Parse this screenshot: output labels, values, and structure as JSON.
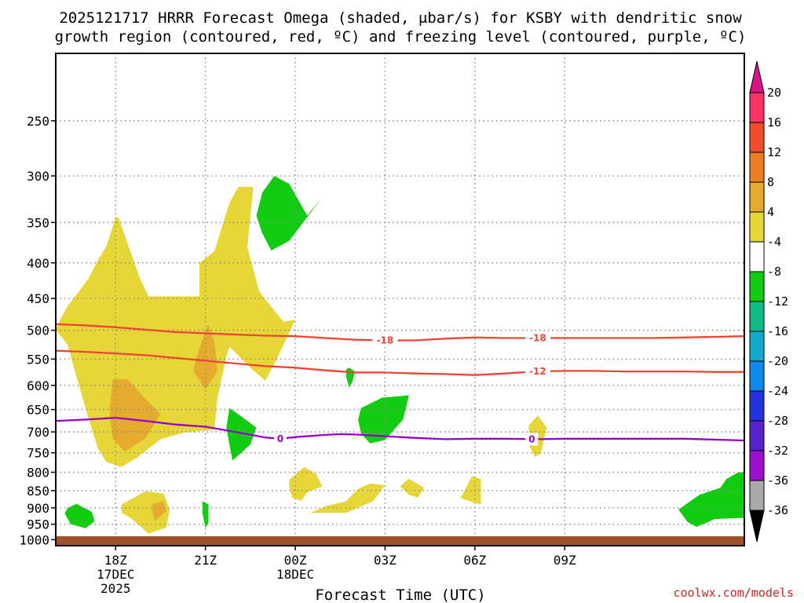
{
  "title": {
    "line1": "2025121717 HRRR Forecast Omega (shaded, μbar/s) for KSBY with dendritic snow",
    "line2": "growth region (contoured, red, ºC) and freezing level (contoured, purple, ºC)"
  },
  "xlabel": "Forecast Time (UTC)",
  "credit": "coolwx.com/models",
  "colors": {
    "grid": "#888888",
    "dgz_contour": "#ee4433",
    "freezing_contour": "#9900cc",
    "ground": "#a0522d",
    "credit": "#cc2222"
  },
  "chart_data": {
    "type": "heatmap",
    "y_axis": {
      "label": "",
      "reversed": true,
      "scale": "log-pressure",
      "range": [
        1020,
        200
      ],
      "ticks": [
        250,
        300,
        350,
        400,
        450,
        500,
        550,
        600,
        650,
        700,
        750,
        800,
        850,
        900,
        950,
        1000
      ]
    },
    "x_axis": {
      "range_hours": [
        -1,
        22
      ],
      "ticks": [
        {
          "label": "18Z",
          "sub1": "17DEC",
          "sub2": "2025",
          "hour": 1
        },
        {
          "label": "21Z",
          "sub1": "",
          "sub2": "",
          "hour": 4
        },
        {
          "label": "00Z",
          "sub1": "18DEC",
          "sub2": "",
          "hour": 7
        },
        {
          "label": "03Z",
          "sub1": "",
          "sub2": "",
          "hour": 10
        },
        {
          "label": "06Z",
          "sub1": "",
          "sub2": "",
          "hour": 13
        },
        {
          "label": "09Z",
          "sub1": "",
          "sub2": "",
          "hour": 16
        }
      ]
    },
    "grid": true,
    "colorbar": {
      "units": "μbar/s",
      "levels": [
        {
          "label": "20",
          "color": "#ff3366"
        },
        {
          "label": "16",
          "color": "#f24a2a"
        },
        {
          "label": "12",
          "color": "#ec7d24"
        },
        {
          "label": "8",
          "color": "#e4ab2e"
        },
        {
          "label": "4",
          "color": "#e6d637"
        },
        {
          "label": "-4",
          "color": "#ffffff"
        },
        {
          "label": "-8",
          "color": "#11cc11"
        },
        {
          "label": "-12",
          "color": "#11bb88"
        },
        {
          "label": "-16",
          "color": "#11aacc"
        },
        {
          "label": "-20",
          "color": "#1188ee"
        },
        {
          "label": "-24",
          "color": "#2233dd"
        },
        {
          "label": "-28",
          "color": "#5522cc"
        },
        {
          "label": "-32",
          "color": "#9911cc"
        },
        {
          "label": "-36",
          "color": "#aaaaaa"
        }
      ],
      "top_arrow_color": "#dd1188",
      "bottom_arrow_color": "#000000"
    },
    "omega_regions": [
      {
        "level": "4",
        "points": [
          [
            -1,
            499
          ],
          [
            -0.8,
            478
          ],
          [
            -0.6,
            461
          ],
          [
            -0.3,
            444
          ],
          [
            0.1,
            421
          ],
          [
            0.4,
            397
          ],
          [
            0.7,
            378
          ],
          [
            0.9,
            355
          ],
          [
            1.0,
            343
          ],
          [
            1.1,
            345
          ],
          [
            1.4,
            375
          ],
          [
            1.8,
            420
          ],
          [
            2.1,
            447
          ],
          [
            3.1,
            447
          ],
          [
            3.8,
            447
          ],
          [
            3.8,
            400
          ],
          [
            4.3,
            385
          ],
          [
            4.8,
            328
          ],
          [
            5.1,
            311
          ],
          [
            5.6,
            311
          ],
          [
            5.4,
            380
          ],
          [
            5.8,
            440
          ],
          [
            6.6,
            486
          ],
          [
            7.0,
            483
          ],
          [
            6.4,
            548
          ],
          [
            6.0,
            591
          ],
          [
            5.5,
            566
          ],
          [
            4.8,
            528
          ],
          [
            4.7,
            545
          ],
          [
            4.4,
            626
          ],
          [
            4.3,
            695
          ],
          [
            3.3,
            701
          ],
          [
            2.5,
            717
          ],
          [
            1.7,
            763
          ],
          [
            1.2,
            786
          ],
          [
            0.7,
            774
          ],
          [
            0.4,
            738
          ],
          [
            0.1,
            670
          ],
          [
            -0.3,
            585
          ],
          [
            -0.6,
            525
          ]
        ]
      },
      {
        "level": "8",
        "points": [
          [
            0.9,
            588
          ],
          [
            1.4,
            588
          ],
          [
            2.0,
            628
          ],
          [
            2.5,
            660
          ],
          [
            2.0,
            715
          ],
          [
            1.3,
            747
          ],
          [
            0.9,
            715
          ],
          [
            0.8,
            655
          ]
        ]
      },
      {
        "level": "8",
        "points": [
          [
            3.9,
            515
          ],
          [
            4.1,
            490
          ],
          [
            4.3,
            520
          ],
          [
            4.4,
            573
          ],
          [
            4.0,
            608
          ],
          [
            3.6,
            573
          ],
          [
            3.7,
            548
          ]
        ]
      },
      {
        "level": "-8",
        "points": [
          [
            5.9,
            317
          ],
          [
            6.3,
            300
          ],
          [
            6.8,
            308
          ],
          [
            7.4,
            342
          ],
          [
            7.9,
            322
          ],
          [
            6.8,
            372
          ],
          [
            6.2,
            384
          ],
          [
            5.9,
            363
          ],
          [
            5.7,
            342
          ]
        ]
      },
      {
        "level": "-8",
        "points": [
          [
            4.8,
            647
          ],
          [
            5.2,
            665
          ],
          [
            5.7,
            690
          ],
          [
            5.5,
            730
          ],
          [
            4.9,
            770
          ],
          [
            4.8,
            730
          ],
          [
            4.7,
            690
          ]
        ]
      },
      {
        "level": "-8",
        "points": [
          [
            9.2,
            647
          ],
          [
            9.9,
            625
          ],
          [
            10.8,
            620
          ],
          [
            10.6,
            672
          ],
          [
            10.0,
            719
          ],
          [
            9.5,
            727
          ],
          [
            9.2,
            704
          ],
          [
            9.1,
            672
          ]
        ]
      },
      {
        "level": "-8",
        "points": [
          [
            8.8,
            566
          ],
          [
            9.0,
            573
          ],
          [
            8.9,
            594
          ],
          [
            8.8,
            605
          ],
          [
            8.7,
            583
          ],
          [
            8.7,
            569
          ]
        ]
      },
      {
        "level": "-8",
        "points": [
          [
            -0.6,
            900
          ],
          [
            -0.3,
            888
          ],
          [
            0.2,
            912
          ],
          [
            0.3,
            940
          ],
          [
            0.0,
            963
          ],
          [
            -0.5,
            950
          ],
          [
            -0.7,
            917
          ]
        ]
      },
      {
        "level": "-8",
        "points": [
          [
            3.9,
            880
          ],
          [
            4.1,
            890
          ],
          [
            4.1,
            945
          ],
          [
            4.0,
            962
          ],
          [
            3.9,
            915
          ]
        ]
      },
      {
        "level": "-8",
        "points": [
          [
            19.8,
            905
          ],
          [
            20.5,
            862
          ],
          [
            21.2,
            842
          ],
          [
            21.4,
            818
          ],
          [
            21.8,
            800
          ],
          [
            22,
            800
          ],
          [
            22,
            930
          ],
          [
            21.0,
            934
          ],
          [
            20.8,
            943
          ],
          [
            20.4,
            958
          ],
          [
            20.1,
            943
          ]
        ]
      },
      {
        "level": "4",
        "points": [
          [
            1.2,
            890
          ],
          [
            2.0,
            852
          ],
          [
            2.6,
            858
          ],
          [
            2.8,
            905
          ],
          [
            2.7,
            960
          ],
          [
            2.1,
            980
          ],
          [
            1.5,
            930
          ],
          [
            1.2,
            915
          ]
        ]
      },
      {
        "level": "8",
        "points": [
          [
            2.2,
            890
          ],
          [
            2.6,
            880
          ],
          [
            2.7,
            910
          ],
          [
            2.3,
            940
          ]
        ]
      },
      {
        "level": "4",
        "points": [
          [
            6.8,
            820
          ],
          [
            7.3,
            786
          ],
          [
            7.7,
            805
          ],
          [
            7.9,
            838
          ],
          [
            7.4,
            855
          ],
          [
            7.2,
            880
          ],
          [
            6.9,
            870
          ],
          [
            6.8,
            842
          ]
        ]
      },
      {
        "level": "4",
        "points": [
          [
            9.5,
            830
          ],
          [
            10.0,
            835
          ],
          [
            9.6,
            880
          ],
          [
            8.7,
            915
          ],
          [
            7.5,
            915
          ],
          [
            8.0,
            895
          ],
          [
            8.7,
            880
          ],
          [
            9.1,
            845
          ]
        ]
      },
      {
        "level": "4",
        "points": [
          [
            10.5,
            838
          ],
          [
            10.8,
            817
          ],
          [
            11.3,
            842
          ],
          [
            11.1,
            870
          ],
          [
            10.8,
            862
          ]
        ]
      },
      {
        "level": "4",
        "points": [
          [
            12.6,
            860
          ],
          [
            12.9,
            810
          ],
          [
            13.2,
            818
          ],
          [
            13.2,
            890
          ],
          [
            12.8,
            880
          ],
          [
            12.5,
            870
          ]
        ]
      },
      {
        "level": "4",
        "points": [
          [
            14.8,
            685
          ],
          [
            15.1,
            663
          ],
          [
            15.4,
            690
          ],
          [
            15.2,
            752
          ],
          [
            15.0,
            760
          ],
          [
            14.8,
            730
          ]
        ]
      }
    ],
    "contours": [
      {
        "name": "dendritic snow growth region",
        "color_key": "dgz_contour",
        "lines": [
          {
            "value": "-18",
            "points": [
              [
                -1,
                490
              ],
              [
                0,
                492
              ],
              [
                1,
                495
              ],
              [
                2,
                499
              ],
              [
                3,
                503
              ],
              [
                4,
                505
              ],
              [
                5,
                507
              ],
              [
                6,
                509
              ],
              [
                7,
                510
              ],
              [
                8,
                513
              ],
              [
                9,
                516
              ],
              [
                10,
                517
              ],
              [
                11,
                517
              ],
              [
                12,
                514
              ],
              [
                13,
                512
              ],
              [
                14,
                513
              ],
              [
                15,
                513
              ],
              [
                16,
                513
              ],
              [
                17,
                513
              ],
              [
                18,
                513
              ],
              [
                19,
                513
              ],
              [
                20,
                512
              ],
              [
                21,
                511
              ],
              [
                22,
                510
              ]
            ],
            "labels": [
              [
                10,
                517
              ],
              [
                15.1,
                513
              ]
            ]
          },
          {
            "value": "-12",
            "points": [
              [
                -1,
                535
              ],
              [
                0,
                537
              ],
              [
                1,
                540
              ],
              [
                2,
                543
              ],
              [
                3,
                548
              ],
              [
                4,
                553
              ],
              [
                5,
                558
              ],
              [
                6,
                563
              ],
              [
                7,
                566
              ],
              [
                8,
                571
              ],
              [
                9,
                575
              ],
              [
                10,
                575
              ],
              [
                11,
                577
              ],
              [
                12,
                578
              ],
              [
                13,
                580
              ],
              [
                14,
                577
              ],
              [
                15,
                573
              ],
              [
                16,
                572
              ],
              [
                17,
                572
              ],
              [
                18,
                573
              ],
              [
                19,
                573
              ],
              [
                20,
                573
              ],
              [
                21,
                574
              ],
              [
                22,
                574
              ]
            ],
            "labels": [
              [
                15.1,
                573
              ]
            ]
          }
        ]
      },
      {
        "name": "freezing level",
        "color_key": "freezing_contour",
        "lines": [
          {
            "value": "0",
            "points": [
              [
                -1,
                675
              ],
              [
                0,
                672
              ],
              [
                1,
                668
              ],
              [
                2,
                675
              ],
              [
                3,
                683
              ],
              [
                4,
                688
              ],
              [
                5,
                700
              ],
              [
                6,
                713
              ],
              [
                6.5,
                716
              ],
              [
                7,
                712
              ],
              [
                8,
                707
              ],
              [
                8.5,
                705
              ],
              [
                9,
                706
              ],
              [
                10,
                710
              ],
              [
                11,
                714
              ],
              [
                12,
                717
              ],
              [
                13,
                716
              ],
              [
                14,
                716
              ],
              [
                15,
                717
              ],
              [
                16,
                716
              ],
              [
                17,
                716
              ],
              [
                18,
                716
              ],
              [
                19,
                716
              ],
              [
                20,
                716
              ],
              [
                21,
                718
              ],
              [
                22,
                720
              ]
            ],
            "labels": [
              [
                6.5,
                716
              ],
              [
                14.9,
                717
              ]
            ]
          }
        ]
      }
    ],
    "ground_pressure": 1020
  }
}
